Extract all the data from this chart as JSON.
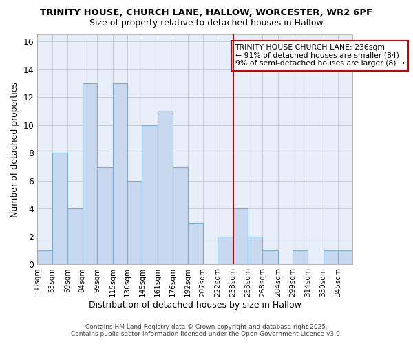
{
  "title1": "TRINITY HOUSE, CHURCH LANE, HALLOW, WORCESTER, WR2 6PF",
  "title2": "Size of property relative to detached houses in Hallow",
  "xlabel": "Distribution of detached houses by size in Hallow",
  "ylabel": "Number of detached properties",
  "bin_edges": [
    38,
    53,
    69,
    84,
    99,
    115,
    130,
    145,
    161,
    176,
    192,
    207,
    222,
    238,
    253,
    268,
    284,
    299,
    314,
    330,
    345,
    360
  ],
  "counts": [
    1,
    8,
    4,
    13,
    7,
    13,
    6,
    10,
    11,
    7,
    3,
    0,
    2,
    4,
    2,
    1,
    0,
    1,
    0,
    1,
    1
  ],
  "tick_labels": [
    "38sqm",
    "53sqm",
    "69sqm",
    "84sqm",
    "99sqm",
    "115sqm",
    "130sqm",
    "145sqm",
    "161sqm",
    "176sqm",
    "192sqm",
    "207sqm",
    "222sqm",
    "238sqm",
    "253sqm",
    "268sqm",
    "284sqm",
    "299sqm",
    "314sqm",
    "330sqm",
    "345sqm"
  ],
  "bar_color": "#c8d8ee",
  "bar_edge_color": "#7aaace",
  "vline_x": 238,
  "vline_color": "#cc0000",
  "ylim": [
    0,
    16.5
  ],
  "yticks": [
    0,
    2,
    4,
    6,
    8,
    10,
    12,
    14,
    16
  ],
  "annotation_title": "TRINITY HOUSE CHURCH LANE: 236sqm",
  "annotation_line2": "← 91% of detached houses are smaller (84)",
  "annotation_line3": "9% of semi-detached houses are larger (8) →",
  "annotation_box_color": "#ffffff",
  "annotation_box_edge": "#cc0000",
  "background_color": "#e8eef8",
  "grid_color": "#c0c8d8",
  "footer": "Contains HM Land Registry data © Crown copyright and database right 2025.\nContains public sector information licensed under the Open Government Licence v3.0."
}
